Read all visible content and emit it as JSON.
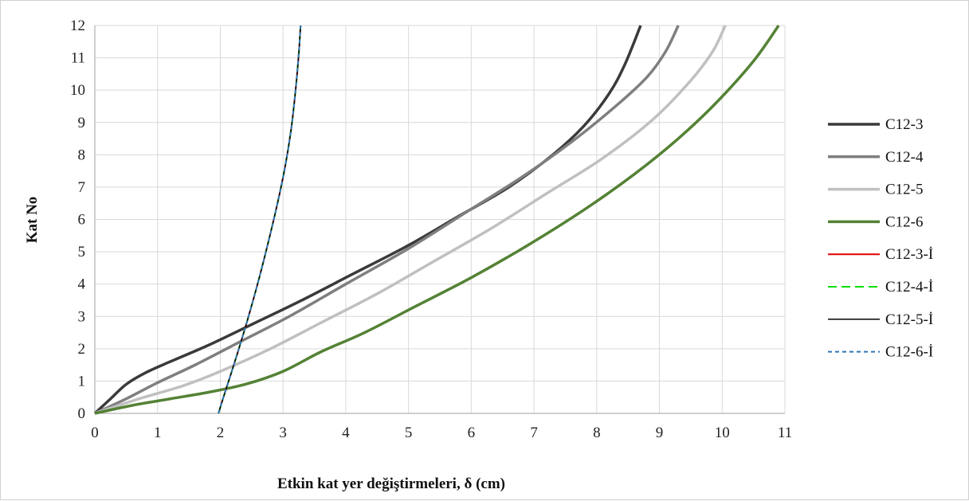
{
  "chart_data": {
    "type": "line",
    "title": "",
    "xlabel": "Etkin kat yer değiştirmeleri, δ (cm)",
    "ylabel": "Kat No",
    "xlim": [
      0,
      11
    ],
    "ylim": [
      0,
      12
    ],
    "xticks": [
      "0",
      "1",
      "2",
      "3",
      "4",
      "5",
      "6",
      "7",
      "8",
      "9",
      "10",
      "11"
    ],
    "yticks": [
      "0",
      "1",
      "2",
      "3",
      "4",
      "5",
      "6",
      "7",
      "8",
      "9",
      "10",
      "11",
      "12"
    ],
    "grid": true,
    "legend_position": "right",
    "series": [
      {
        "name": "C12-3",
        "color": "#3a3a3a",
        "dash": "solid",
        "width": 3.5,
        "x": [
          0,
          0.25,
          0.5,
          0.8,
          1.2,
          1.8,
          2.5,
          3.3,
          4.1,
          5.0,
          5.8,
          6.6,
          7.3,
          7.8,
          8.2,
          8.45,
          8.7
        ],
        "y": [
          0,
          0.45,
          0.9,
          1.25,
          1.6,
          2.1,
          2.75,
          3.5,
          4.3,
          5.2,
          6.1,
          7.0,
          8.0,
          8.9,
          9.9,
          10.8,
          12
        ]
      },
      {
        "name": "C12-4",
        "color": "#7f7f7f",
        "dash": "solid",
        "width": 3.5,
        "x": [
          0,
          0.5,
          1.0,
          1.6,
          2.3,
          3.1,
          4.0,
          5.0,
          5.9,
          6.8,
          7.6,
          8.3,
          8.8,
          9.1,
          9.3
        ],
        "y": [
          0,
          0.45,
          0.95,
          1.5,
          2.2,
          3.0,
          4.0,
          5.1,
          6.2,
          7.3,
          8.4,
          9.5,
          10.4,
          11.2,
          12
        ]
      },
      {
        "name": "C12-5",
        "color": "#c0c0c0",
        "dash": "solid",
        "width": 3.5,
        "x": [
          0,
          0.7,
          1.4,
          2.0,
          2.8,
          3.6,
          4.5,
          5.4,
          6.3,
          7.2,
          8.1,
          8.9,
          9.5,
          9.85,
          10.05
        ],
        "y": [
          0,
          0.45,
          0.85,
          1.3,
          2.0,
          2.8,
          3.7,
          4.7,
          5.7,
          6.8,
          7.9,
          9.1,
          10.3,
          11.2,
          12
        ]
      },
      {
        "name": "C12-6",
        "color": "#548235",
        "dash": "solid",
        "width": 3.5,
        "x": [
          0,
          0.6,
          1.2,
          1.8,
          2.4,
          3.0,
          3.6,
          4.3,
          5.1,
          6.0,
          6.9,
          7.8,
          8.6,
          9.3,
          9.9,
          10.5,
          10.9
        ],
        "y": [
          0,
          0.25,
          0.45,
          0.65,
          0.9,
          1.3,
          1.9,
          2.5,
          3.3,
          4.2,
          5.2,
          6.3,
          7.4,
          8.5,
          9.6,
          10.9,
          12
        ]
      },
      {
        "name": "C12-3-İ",
        "color": "#e00000",
        "dash": "solid",
        "width": 2,
        "x": [
          1.97,
          2.05,
          2.15,
          2.28,
          2.42,
          2.58,
          2.74,
          2.9,
          3.03,
          3.13,
          3.2,
          3.25,
          3.28
        ],
        "y": [
          0,
          0.5,
          1.1,
          1.9,
          2.8,
          3.9,
          5.1,
          6.4,
          7.6,
          8.8,
          10.0,
          11.1,
          12
        ]
      },
      {
        "name": "C12-4-İ",
        "color": "#00dd00",
        "dash": "dash",
        "width": 2,
        "x": [
          1.97,
          2.05,
          2.15,
          2.28,
          2.42,
          2.58,
          2.74,
          2.9,
          3.03,
          3.13,
          3.2,
          3.25,
          3.28
        ],
        "y": [
          0,
          0.5,
          1.1,
          1.9,
          2.8,
          3.9,
          5.1,
          6.4,
          7.6,
          8.8,
          10.0,
          11.1,
          12
        ]
      },
      {
        "name": "C12-5-İ",
        "color": "#000000",
        "dash": "solid",
        "width": 1.5,
        "x": [
          1.97,
          2.05,
          2.15,
          2.28,
          2.42,
          2.58,
          2.74,
          2.9,
          3.03,
          3.13,
          3.2,
          3.25,
          3.28
        ],
        "y": [
          0,
          0.5,
          1.1,
          1.9,
          2.8,
          3.9,
          5.1,
          6.4,
          7.6,
          8.8,
          10.0,
          11.1,
          12
        ]
      },
      {
        "name": "C12-6-İ",
        "color": "#2e75b6",
        "dash": "dot",
        "width": 2,
        "x": [
          1.97,
          2.05,
          2.15,
          2.28,
          2.42,
          2.58,
          2.74,
          2.9,
          3.03,
          3.13,
          3.2,
          3.25,
          3.28
        ],
        "y": [
          0,
          0.5,
          1.1,
          1.9,
          2.8,
          3.9,
          5.1,
          6.4,
          7.6,
          8.8,
          10.0,
          11.1,
          12
        ]
      }
    ]
  }
}
